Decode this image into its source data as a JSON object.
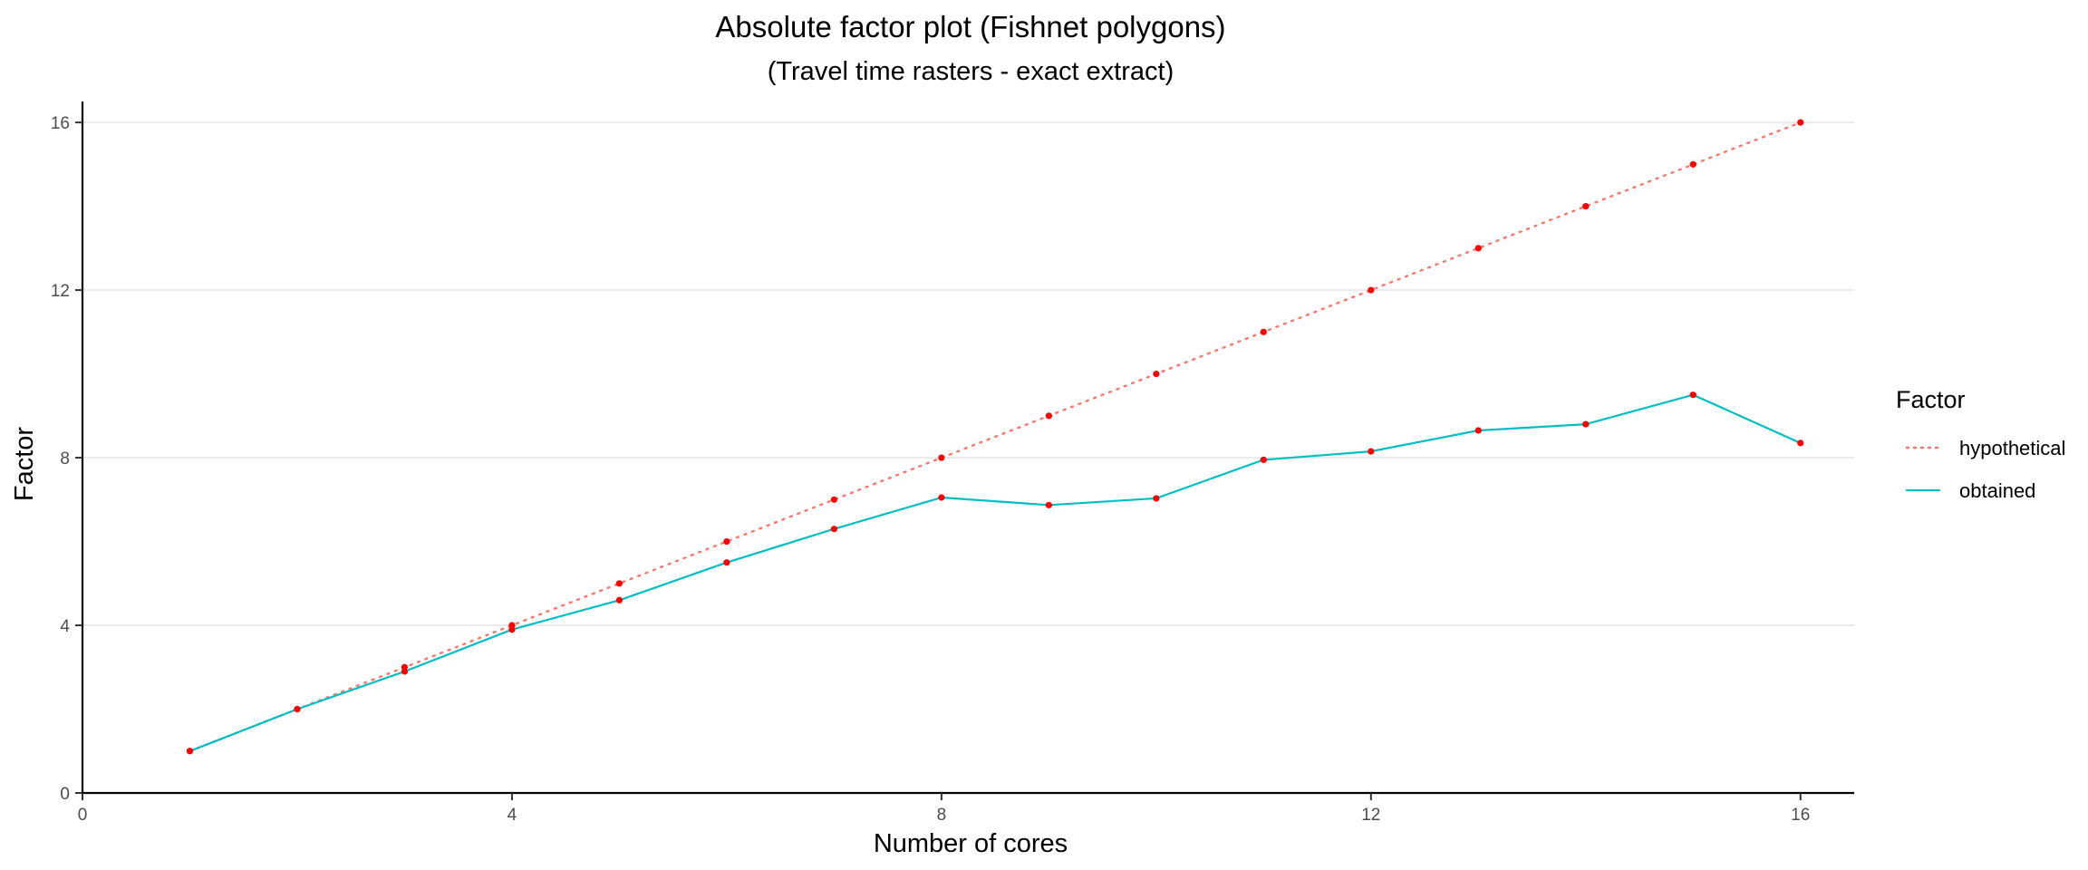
{
  "chart_data": {
    "type": "line",
    "title": "Absolute factor plot (Fishnet polygons)",
    "subtitle": "(Travel time rasters - exact extract)",
    "xlabel": "Number of cores",
    "ylabel": "Factor",
    "xlim": [
      0,
      16.5
    ],
    "ylim": [
      0,
      16.5
    ],
    "x_ticks": [
      0,
      4,
      8,
      12,
      16
    ],
    "y_ticks": [
      0,
      4,
      8,
      12,
      16
    ],
    "grid": "horizontal-major",
    "legend": {
      "title": "Factor",
      "position": "right"
    },
    "x": [
      1,
      2,
      3,
      4,
      5,
      6,
      7,
      8,
      9,
      10,
      11,
      12,
      13,
      14,
      15,
      16
    ],
    "series": [
      {
        "name": "hypothetical",
        "color": "#F8766D",
        "line_style": "dotted",
        "values": [
          1,
          2,
          3,
          4,
          5,
          6,
          7,
          8,
          9,
          10,
          11,
          12,
          13,
          14,
          15,
          16
        ]
      },
      {
        "name": "obtained",
        "color": "#00BFC4",
        "line_style": "solid",
        "values": [
          1,
          2,
          2.9,
          3.9,
          4.6,
          5.5,
          6.3,
          7.05,
          6.87,
          7.03,
          7.95,
          8.15,
          8.65,
          8.8,
          9.5,
          8.35
        ]
      }
    ],
    "point_color": "#FF0000"
  }
}
